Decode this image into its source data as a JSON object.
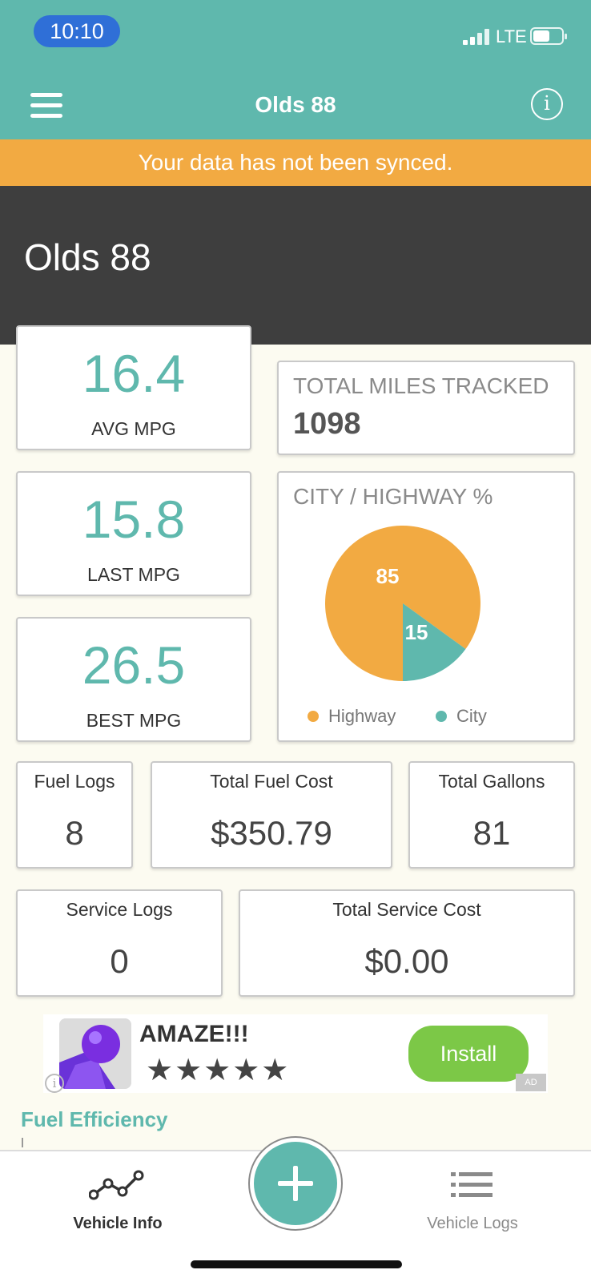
{
  "status_bar": {
    "time": "10:10",
    "network": "LTE"
  },
  "header": {
    "title": "Olds 88"
  },
  "sync_banner": {
    "text": "Your data has not been synced."
  },
  "hero": {
    "title": "Olds 88"
  },
  "mpg": {
    "avg": {
      "value": "16.4",
      "label": "AVG MPG"
    },
    "last": {
      "value": "15.8",
      "label": "LAST MPG"
    },
    "best": {
      "value": "26.5",
      "label": "BEST MPG"
    }
  },
  "miles": {
    "label": "TOTAL MILES TRACKED",
    "value": "1098"
  },
  "city_highway": {
    "title": "CITY / HIGHWAY %",
    "legend": {
      "highway": "Highway",
      "city": "City"
    },
    "labels": {
      "highway": "85",
      "city": "15"
    }
  },
  "chart_data": {
    "type": "pie",
    "title": "CITY / HIGHWAY %",
    "categories": [
      "Highway",
      "City"
    ],
    "values": [
      85,
      15
    ],
    "colors": [
      "#f2aa42",
      "#5fb8ad"
    ],
    "legend": "bottom"
  },
  "stats": {
    "fuel_logs": {
      "label": "Fuel Logs",
      "value": "8"
    },
    "total_fuel_cost": {
      "label": "Total Fuel Cost",
      "value": "$350.79"
    },
    "total_gallons": {
      "label": "Total Gallons",
      "value": "81"
    },
    "service_logs": {
      "label": "Service Logs",
      "value": "0"
    },
    "total_service_cost": {
      "label": "Total Service Cost",
      "value": "$0.00"
    }
  },
  "ad": {
    "title": "AMAZE!!!",
    "stars": "★★★★★",
    "install": "Install",
    "badge": "AD",
    "info": "i"
  },
  "fuel_efficiency": {
    "title": "Fuel Efficiency"
  },
  "tabs": {
    "vehicle_info": {
      "label": "Vehicle Info"
    },
    "vehicle_logs": {
      "label": "Vehicle Logs"
    }
  },
  "colors": {
    "accent": "#5fb8ad",
    "warning": "#f2aa42",
    "hero_bg": "#3e3e3e",
    "page_bg": "#fcfbf1"
  }
}
